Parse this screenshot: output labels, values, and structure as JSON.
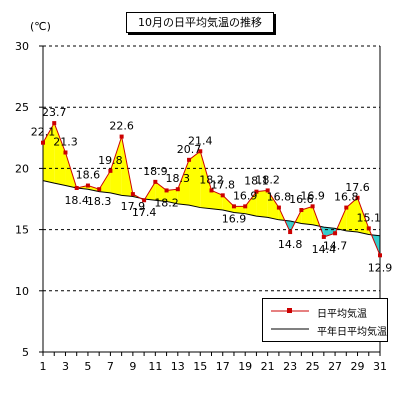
{
  "chart_data": {
    "type": "line",
    "title": "10月の日平均気温の推移",
    "ylabel": "(℃)",
    "xlabel": "",
    "ylim": [
      5,
      30
    ],
    "yticks": [
      5,
      10,
      15,
      20,
      25,
      30
    ],
    "xlim": [
      1,
      31
    ],
    "xticks": [
      1,
      3,
      5,
      7,
      9,
      11,
      13,
      15,
      17,
      19,
      21,
      23,
      25,
      27,
      29,
      31
    ],
    "grid": "dashed horizontal",
    "legend_position": "bottom-right",
    "x": [
      1,
      2,
      3,
      4,
      5,
      6,
      7,
      8,
      9,
      10,
      11,
      12,
      13,
      14,
      15,
      16,
      17,
      18,
      19,
      20,
      21,
      22,
      23,
      24,
      25,
      26,
      27,
      28,
      29,
      30,
      31
    ],
    "series": [
      {
        "name": "日平均気温",
        "color": "#cc0000",
        "values": [
          22.1,
          23.7,
          21.3,
          18.4,
          18.6,
          18.3,
          19.8,
          22.6,
          17.9,
          17.4,
          18.9,
          18.2,
          18.3,
          20.7,
          21.4,
          18.2,
          17.8,
          16.9,
          16.9,
          18.1,
          18.2,
          16.8,
          14.8,
          16.6,
          16.9,
          14.4,
          14.7,
          16.8,
          17.6,
          15.1,
          12.9
        ]
      },
      {
        "name": "平年日平均気温",
        "color": "#000000",
        "values": [
          19.0,
          18.8,
          18.6,
          18.4,
          18.3,
          18.1,
          18.0,
          17.8,
          17.7,
          17.5,
          17.4,
          17.3,
          17.1,
          17.0,
          16.8,
          16.7,
          16.6,
          16.4,
          16.3,
          16.1,
          16.0,
          15.8,
          15.7,
          15.5,
          15.4,
          15.2,
          15.1,
          14.9,
          14.8,
          14.6,
          14.5
        ]
      }
    ],
    "labels": [
      {
        "day": 1,
        "text": "22.1",
        "pos": "above"
      },
      {
        "day": 2,
        "text": "23.7",
        "pos": "above"
      },
      {
        "day": 3,
        "text": "21.3",
        "pos": "above"
      },
      {
        "day": 4,
        "text": "18.4",
        "pos": "below"
      },
      {
        "day": 5,
        "text": "18.6",
        "pos": "above"
      },
      {
        "day": 6,
        "text": "18.3",
        "pos": "below"
      },
      {
        "day": 7,
        "text": "19.8",
        "pos": "above"
      },
      {
        "day": 8,
        "text": "22.6",
        "pos": "above"
      },
      {
        "day": 9,
        "text": "17.9",
        "pos": "below"
      },
      {
        "day": 10,
        "text": "17.4",
        "pos": "below"
      },
      {
        "day": 11,
        "text": "18.9",
        "pos": "above"
      },
      {
        "day": 12,
        "text": "18.2",
        "pos": "below"
      },
      {
        "day": 13,
        "text": "18.3",
        "pos": "above"
      },
      {
        "day": 14,
        "text": "20.7",
        "pos": "above"
      },
      {
        "day": 15,
        "text": "21.4",
        "pos": "above"
      },
      {
        "day": 16,
        "text": "18.2",
        "pos": "above"
      },
      {
        "day": 17,
        "text": "17.8",
        "pos": "above"
      },
      {
        "day": 18,
        "text": "16.9",
        "pos": "below"
      },
      {
        "day": 19,
        "text": "16.9",
        "pos": "above"
      },
      {
        "day": 20,
        "text": "18.1",
        "pos": "above"
      },
      {
        "day": 21,
        "text": "18.2",
        "pos": "above"
      },
      {
        "day": 22,
        "text": "16.8",
        "pos": "above"
      },
      {
        "day": 23,
        "text": "14.8",
        "pos": "below"
      },
      {
        "day": 24,
        "text": "16.6",
        "pos": "above"
      },
      {
        "day": 25,
        "text": "16.9",
        "pos": "above"
      },
      {
        "day": 26,
        "text": "14.4",
        "pos": "below"
      },
      {
        "day": 27,
        "text": "14.7",
        "pos": "below"
      },
      {
        "day": 28,
        "text": "16.8",
        "pos": "above"
      },
      {
        "day": 29,
        "text": "17.6",
        "pos": "above"
      },
      {
        "day": 30,
        "text": "15.1",
        "pos": "above"
      },
      {
        "day": 31,
        "text": "12.9",
        "pos": "below"
      }
    ],
    "fill_colors": {
      "above_normal": "#ffff00",
      "below_normal": "#33cccc"
    }
  }
}
